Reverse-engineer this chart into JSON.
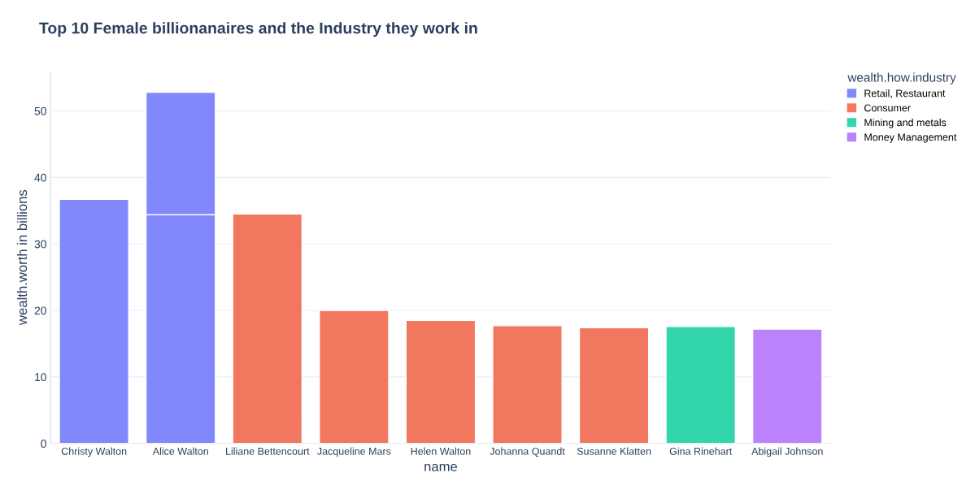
{
  "chart_data": {
    "type": "bar",
    "title": "Top 10 Female billionanaires and the Industry they work in",
    "xlabel": "name",
    "ylabel": "wealth.worth in billions",
    "legend_title": "wealth.how.industry",
    "categories": [
      "Christy Walton",
      "Alice Walton",
      "Liliane Bettencourt",
      "Jacqueline Mars",
      "Helen Walton",
      "Johanna Quandt",
      "Susanne Klatten",
      "Gina Rinehart",
      "Abigail Johnson"
    ],
    "stacked": true,
    "series": [
      {
        "name": "Retail, Restaurant",
        "color": "#8188fc",
        "values": [
          36.7,
          34.4,
          null,
          null,
          null,
          null,
          null,
          null,
          null
        ]
      },
      {
        "color": "#8188fc",
        "values": [
          null,
          18.4,
          null,
          null,
          null,
          null,
          null,
          null,
          null
        ]
      },
      {
        "name": "Consumer",
        "color": "#f2775f",
        "values": [
          null,
          null,
          34.5,
          20.0,
          18.5,
          17.7,
          17.4,
          null,
          null
        ]
      },
      {
        "name": "Mining and metals",
        "color": "#33d6ab",
        "values": [
          null,
          null,
          null,
          null,
          null,
          null,
          null,
          17.6,
          null
        ]
      },
      {
        "name": "Money Management",
        "color": "#bc82fb",
        "values": [
          null,
          null,
          null,
          null,
          null,
          null,
          null,
          null,
          17.2
        ]
      }
    ],
    "ylim": [
      0,
      56
    ],
    "yticks": [
      0,
      10,
      20,
      30,
      40,
      50
    ],
    "grid": "y",
    "legend": "top right"
  }
}
